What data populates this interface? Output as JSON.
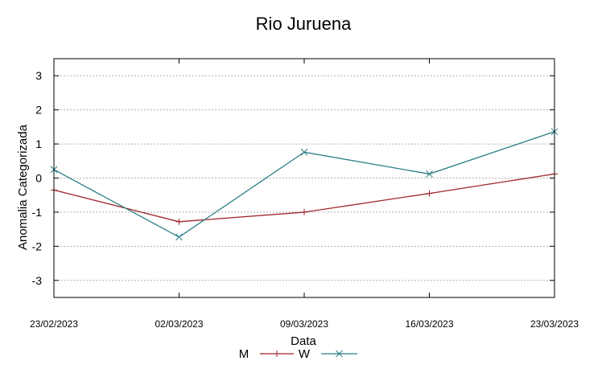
{
  "chart_data": {
    "type": "line",
    "title": "Rio Juruena",
    "xlabel": "Data",
    "ylabel": "Anomalia Categorizada",
    "categories": [
      "23/02/2023",
      "02/03/2023",
      "09/03/2023",
      "16/03/2023",
      "23/03/2023"
    ],
    "ylim": [
      -3.5,
      3.5
    ],
    "yticks": [
      3,
      2,
      1,
      0,
      -1,
      -2,
      -3
    ],
    "ytick_labels": [
      "3",
      "2",
      "1",
      "0",
      "-1",
      "-2",
      "-3"
    ],
    "grid": true,
    "legend_position": "bottom-center",
    "series": [
      {
        "name": "M",
        "values": [
          -0.35,
          -1.28,
          -1.0,
          -0.45,
          0.12
        ],
        "color": "#a0252a",
        "marker": "plus"
      },
      {
        "name": "W",
        "values": [
          0.25,
          -1.73,
          0.76,
          0.12,
          1.36
        ],
        "color": "#2a7d86",
        "marker": "x"
      }
    ]
  }
}
